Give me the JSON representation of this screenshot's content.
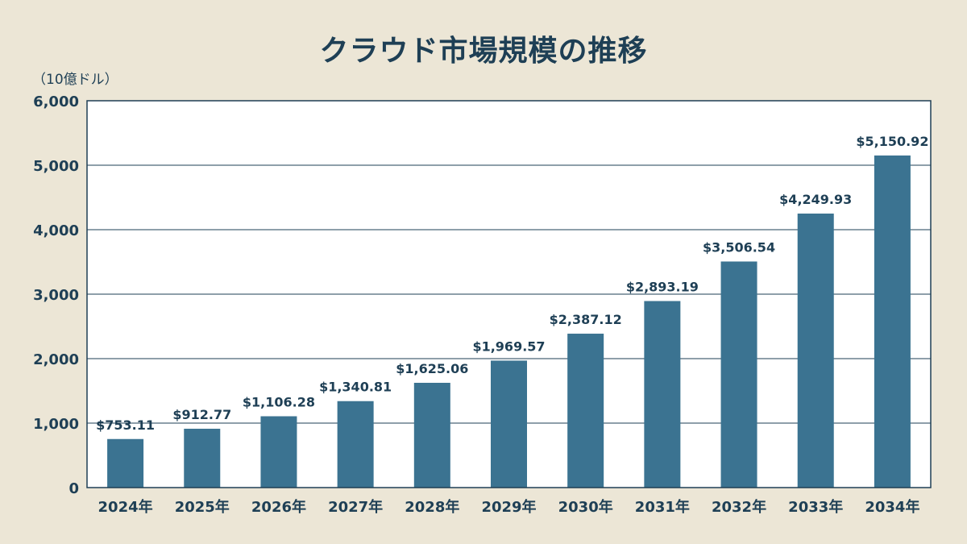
{
  "title": "クラウド市場規模の推移",
  "unit_label": "（10億ドル）",
  "colors": {
    "background": "#ece6d6",
    "plot_background": "#ffffff",
    "bar": "#3b7391",
    "text": "#1e3f55",
    "grid": "#1e3f55"
  },
  "chart_data": {
    "type": "bar",
    "title": "クラウド市場規模の推移",
    "ylabel": "（10億ドル）",
    "categories": [
      "2024年",
      "2025年",
      "2026年",
      "2027年",
      "2028年",
      "2029年",
      "2030年",
      "2031年",
      "2032年",
      "2033年",
      "2034年"
    ],
    "values": [
      753.11,
      912.77,
      1106.28,
      1340.81,
      1625.06,
      1969.57,
      2387.12,
      2893.19,
      3506.54,
      4249.93,
      5150.92
    ],
    "value_labels": [
      "$753.11",
      "$912.77",
      "$1,106.28",
      "$1,340.81",
      "$1,625.06",
      "$1,969.57",
      "$2,387.12",
      "$2,893.19",
      "$3,506.54",
      "$4,249.93",
      "$5,150.92"
    ],
    "ylim": [
      0,
      6000
    ],
    "yticks": [
      0,
      1000,
      2000,
      3000,
      4000,
      5000,
      6000
    ],
    "ytick_labels": [
      "0",
      "1,000",
      "2,000",
      "3,000",
      "4,000",
      "5,000",
      "6,000"
    ],
    "grid": true
  }
}
